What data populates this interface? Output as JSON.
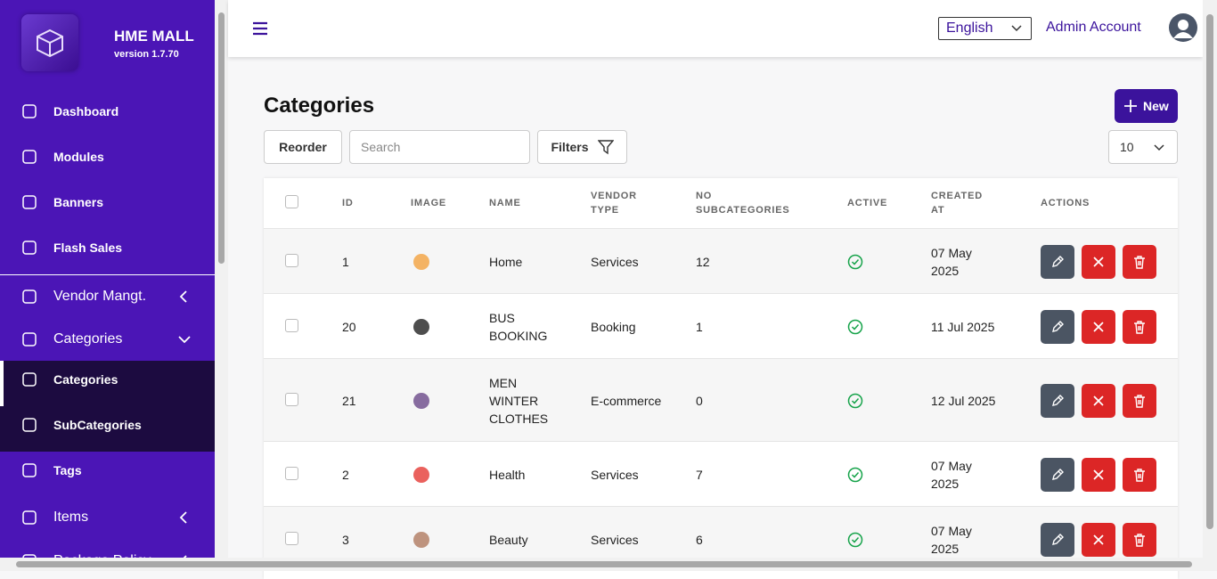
{
  "sidebar": {
    "brand": "HME MALL",
    "version": "version 1.7.70",
    "items": [
      {
        "label": "Dashboard"
      },
      {
        "label": "Modules"
      },
      {
        "label": "Banners"
      },
      {
        "label": "Flash Sales"
      },
      {
        "label": "Vendor Mangt."
      },
      {
        "label": "Categories"
      },
      {
        "label": "Categories"
      },
      {
        "label": "SubCategories"
      },
      {
        "label": "Tags"
      },
      {
        "label": "Items"
      },
      {
        "label": "Package Policy"
      }
    ]
  },
  "header": {
    "language": "English",
    "account": "Admin Account"
  },
  "page": {
    "title": "Categories",
    "new_button": "New",
    "reorder": "Reorder",
    "search_placeholder": "Search",
    "filters": "Filters",
    "page_size": "10"
  },
  "table": {
    "columns": [
      "ID",
      "IMAGE",
      "NAME",
      "VENDOR TYPE",
      "NO SUBCATEGORIES",
      "ACTIVE",
      "CREATED AT",
      "ACTIONS"
    ],
    "rows": [
      [
        1,
        "Home",
        "Services",
        12,
        "07 May 2025"
      ],
      [
        20,
        "BUS BOOKING",
        "Booking",
        1,
        "11 Jul 2025"
      ],
      [
        21,
        "MEN WINTER CLOTHES",
        "E-commerce",
        0,
        "12 Jul 2025"
      ],
      [
        2,
        "Health",
        "Services",
        7,
        "07 May 2025"
      ],
      [
        3,
        "Beauty",
        "Services",
        6,
        "07 May 2025"
      ]
    ]
  }
}
